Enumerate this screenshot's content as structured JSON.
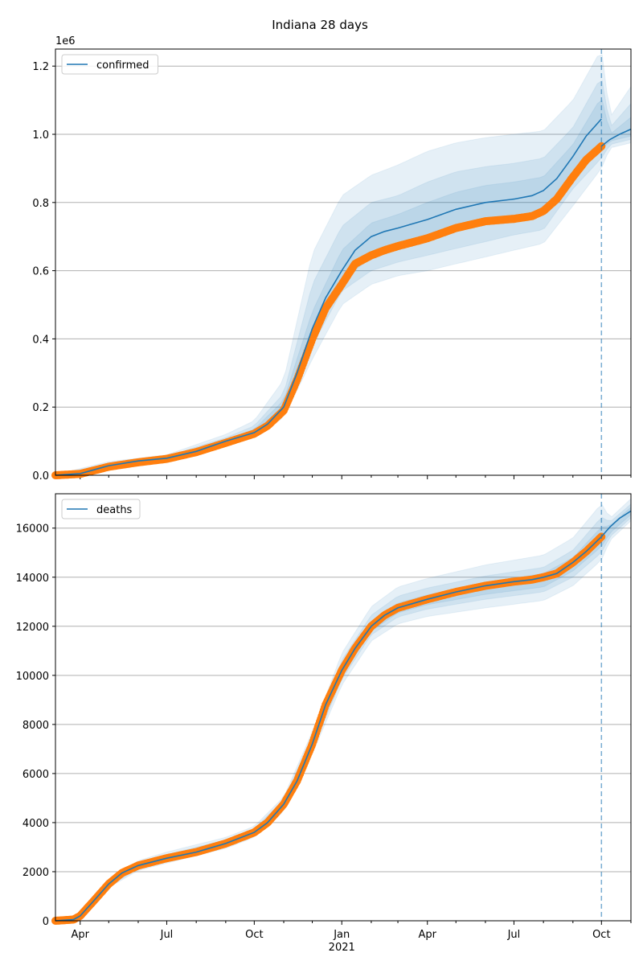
{
  "figure_title": "Indiana 28 days",
  "colors": {
    "model": "#1f77b4",
    "observed": "#ff7f0e",
    "band": "#1f77b4",
    "grid": "#b0b0b0",
    "vline": "#1f77b4"
  },
  "chart_data": [
    {
      "type": "line",
      "title": "",
      "legend": {
        "label": "confirmed",
        "placement": "top-left"
      },
      "offset_label": "1e6",
      "ylim": [
        0,
        1.25
      ],
      "yticks": [
        0.0,
        0.2,
        0.4,
        0.6,
        0.8,
        1.0,
        1.2
      ],
      "ytick_labels": [
        "0.0",
        "0.2",
        "0.4",
        "0.6",
        "0.8",
        "1.0",
        "1.2"
      ],
      "grid": true,
      "forecast_start": "2021-10-01",
      "model": {
        "x": [
          "2020-03-06",
          "2020-04-01",
          "2020-05-01",
          "2020-06-01",
          "2020-07-01",
          "2020-08-01",
          "2020-09-01",
          "2020-10-01",
          "2020-10-15",
          "2020-11-01",
          "2020-11-15",
          "2020-12-01",
          "2020-12-15",
          "2021-01-01",
          "2021-01-15",
          "2021-02-01",
          "2021-02-15",
          "2021-03-01",
          "2021-04-01",
          "2021-05-01",
          "2021-06-01",
          "2021-07-01",
          "2021-07-20",
          "2021-08-01",
          "2021-08-15",
          "2021-09-01",
          "2021-09-15",
          "2021-10-01"
        ],
        "y": [
          0.0,
          0.005,
          0.028,
          0.042,
          0.05,
          0.07,
          0.1,
          0.125,
          0.15,
          0.2,
          0.3,
          0.43,
          0.52,
          0.6,
          0.66,
          0.7,
          0.715,
          0.725,
          0.75,
          0.78,
          0.8,
          0.81,
          0.82,
          0.835,
          0.87,
          0.935,
          0.995,
          1.045
        ]
      },
      "forecast": {
        "x": [
          "2021-10-01",
          "2021-10-10",
          "2021-10-20",
          "2021-11-01"
        ],
        "y": [
          0.965,
          0.985,
          1.0,
          1.015
        ]
      },
      "observed": {
        "x": [
          "2020-03-06",
          "2020-04-01",
          "2020-05-01",
          "2020-06-01",
          "2020-07-01",
          "2020-08-01",
          "2020-09-01",
          "2020-10-01",
          "2020-10-15",
          "2020-11-01",
          "2020-11-15",
          "2020-12-01",
          "2020-12-15",
          "2021-01-01",
          "2021-01-15",
          "2021-02-01",
          "2021-02-15",
          "2021-03-01",
          "2021-04-01",
          "2021-05-01",
          "2021-06-01",
          "2021-07-01",
          "2021-07-20",
          "2021-08-01",
          "2021-08-15",
          "2021-09-01",
          "2021-09-15",
          "2021-10-01"
        ],
        "y": [
          0.0,
          0.004,
          0.025,
          0.038,
          0.048,
          0.068,
          0.095,
          0.122,
          0.145,
          0.19,
          0.28,
          0.4,
          0.49,
          0.56,
          0.62,
          0.645,
          0.66,
          0.672,
          0.695,
          0.725,
          0.745,
          0.752,
          0.76,
          0.775,
          0.81,
          0.875,
          0.925,
          0.965
        ]
      },
      "bands": [
        {
          "x": [
            "2020-03-06",
            "2020-05-01",
            "2020-07-01",
            "2020-09-01",
            "2020-10-01",
            "2020-11-01",
            "2020-12-01",
            "2021-01-01",
            "2021-02-01",
            "2021-03-01",
            "2021-04-01",
            "2021-05-01",
            "2021-06-01",
            "2021-07-01",
            "2021-08-01",
            "2021-09-01",
            "2021-10-01",
            "2021-10-10",
            "2021-11-01"
          ],
          "lo": [
            0.0,
            0.02,
            0.042,
            0.085,
            0.11,
            0.17,
            0.34,
            0.5,
            0.56,
            0.585,
            0.6,
            0.62,
            0.64,
            0.66,
            0.68,
            0.79,
            0.9,
            0.96,
            0.975
          ],
          "hi": [
            0.002,
            0.04,
            0.06,
            0.12,
            0.16,
            0.28,
            0.65,
            0.82,
            0.88,
            0.91,
            0.95,
            0.975,
            0.99,
            1.0,
            1.01,
            1.1,
            1.25,
            1.05,
            1.14
          ]
        },
        {
          "x": [
            "2020-03-06",
            "2020-05-01",
            "2020-07-01",
            "2020-09-01",
            "2020-10-01",
            "2020-11-01",
            "2020-12-01",
            "2021-01-01",
            "2021-02-01",
            "2021-03-01",
            "2021-04-01",
            "2021-05-01",
            "2021-06-01",
            "2021-07-01",
            "2021-08-01",
            "2021-09-01",
            "2021-10-01",
            "2021-10-10",
            "2021-11-01"
          ],
          "lo": [
            0.0,
            0.022,
            0.045,
            0.09,
            0.115,
            0.18,
            0.38,
            0.54,
            0.6,
            0.625,
            0.645,
            0.665,
            0.685,
            0.705,
            0.72,
            0.84,
            0.93,
            0.97,
            0.985
          ],
          "hi": [
            0.001,
            0.035,
            0.056,
            0.11,
            0.145,
            0.24,
            0.56,
            0.73,
            0.8,
            0.82,
            0.86,
            0.89,
            0.905,
            0.915,
            0.93,
            1.02,
            1.17,
            1.02,
            1.09
          ]
        },
        {
          "x": [
            "2020-03-06",
            "2020-05-01",
            "2020-07-01",
            "2020-09-01",
            "2020-10-01",
            "2020-11-01",
            "2020-12-01",
            "2021-01-01",
            "2021-02-01",
            "2021-03-01",
            "2021-04-01",
            "2021-05-01",
            "2021-06-01",
            "2021-07-01",
            "2021-08-01",
            "2021-09-01",
            "2021-10-01",
            "2021-10-10",
            "2021-11-01"
          ],
          "lo": [
            0.0,
            0.025,
            0.048,
            0.095,
            0.12,
            0.19,
            0.41,
            0.57,
            0.64,
            0.67,
            0.69,
            0.715,
            0.735,
            0.75,
            0.765,
            0.88,
            0.955,
            0.98,
            0.995
          ],
          "hi": [
            0.001,
            0.031,
            0.052,
            0.104,
            0.135,
            0.22,
            0.48,
            0.66,
            0.74,
            0.765,
            0.8,
            0.83,
            0.85,
            0.86,
            0.875,
            0.97,
            1.11,
            1.0,
            1.05
          ]
        }
      ]
    },
    {
      "type": "line",
      "title": "",
      "legend": {
        "label": "deaths",
        "placement": "top-left"
      },
      "ylim": [
        0,
        17400
      ],
      "yticks": [
        0,
        2000,
        4000,
        6000,
        8000,
        10000,
        12000,
        14000,
        16000
      ],
      "ytick_labels": [
        "0",
        "2000",
        "4000",
        "6000",
        "8000",
        "10000",
        "12000",
        "14000",
        "16000"
      ],
      "xticks": [
        {
          "date": "2020-04-01",
          "label": "Apr",
          "major": true
        },
        {
          "date": "2020-07-01",
          "label": "Jul",
          "major": true
        },
        {
          "date": "2020-10-01",
          "label": "Oct",
          "major": true
        },
        {
          "date": "2021-01-01",
          "label": "Jan",
          "major": true
        },
        {
          "date": "2021-04-01",
          "label": "Apr",
          "major": true
        },
        {
          "date": "2021-07-01",
          "label": "Jul",
          "major": true
        },
        {
          "date": "2021-10-01",
          "label": "Oct",
          "major": true
        }
      ],
      "year_label": {
        "date": "2021-01-01",
        "label": "2021"
      },
      "xlim": [
        "2020-03-06",
        "2021-11-01"
      ],
      "grid": true,
      "forecast_start": "2021-10-01",
      "model": {
        "x": [
          "2020-03-06",
          "2020-03-25",
          "2020-04-01",
          "2020-04-15",
          "2020-05-01",
          "2020-05-15",
          "2020-06-01",
          "2020-07-01",
          "2020-08-01",
          "2020-09-01",
          "2020-10-01",
          "2020-10-15",
          "2020-11-01",
          "2020-11-15",
          "2020-12-01",
          "2020-12-15",
          "2021-01-01",
          "2021-01-15",
          "2021-02-01",
          "2021-02-15",
          "2021-03-01",
          "2021-04-01",
          "2021-05-01",
          "2021-06-01",
          "2021-07-01",
          "2021-07-20",
          "2021-08-01",
          "2021-08-15",
          "2021-09-01",
          "2021-09-15",
          "2021-10-01"
        ],
        "y": [
          0,
          50,
          200,
          800,
          1500,
          1950,
          2250,
          2550,
          2800,
          3150,
          3600,
          4000,
          4750,
          5700,
          7200,
          8800,
          10200,
          11100,
          12000,
          12450,
          12750,
          13100,
          13400,
          13650,
          13820,
          13900,
          14000,
          14150,
          14600,
          15050,
          15650
        ]
      },
      "forecast": {
        "x": [
          "2021-10-01",
          "2021-10-10",
          "2021-10-20",
          "2021-11-01"
        ],
        "y": [
          15650,
          16050,
          16400,
          16700
        ]
      },
      "observed": {
        "x": [
          "2020-03-06",
          "2020-03-25",
          "2020-04-01",
          "2020-04-15",
          "2020-05-01",
          "2020-05-15",
          "2020-06-01",
          "2020-07-01",
          "2020-08-01",
          "2020-09-01",
          "2020-10-01",
          "2020-10-15",
          "2020-11-01",
          "2020-11-15",
          "2020-12-01",
          "2020-12-15",
          "2021-01-01",
          "2021-01-15",
          "2021-02-01",
          "2021-02-15",
          "2021-03-01",
          "2021-04-01",
          "2021-05-01",
          "2021-06-01",
          "2021-07-01",
          "2021-07-20",
          "2021-08-01",
          "2021-08-15",
          "2021-09-01",
          "2021-09-15",
          "2021-10-01"
        ],
        "y": [
          0,
          50,
          200,
          800,
          1500,
          1950,
          2250,
          2550,
          2800,
          3150,
          3600,
          4000,
          4750,
          5700,
          7200,
          8800,
          10200,
          11100,
          12000,
          12450,
          12750,
          13100,
          13400,
          13650,
          13820,
          13900,
          14000,
          14150,
          14600,
          15050,
          15650
        ]
      },
      "bands": [
        {
          "x": [
            "2020-03-06",
            "2020-04-01",
            "2020-05-01",
            "2020-06-01",
            "2020-07-01",
            "2020-09-01",
            "2020-10-01",
            "2020-11-01",
            "2020-12-01",
            "2021-01-01",
            "2021-02-01",
            "2021-03-01",
            "2021-04-01",
            "2021-06-01",
            "2021-08-01",
            "2021-09-01",
            "2021-10-01",
            "2021-10-10",
            "2021-11-01"
          ],
          "lo": [
            0,
            150,
            1350,
            2050,
            2350,
            2950,
            3400,
            4450,
            6800,
            9600,
            11400,
            12100,
            12400,
            12750,
            13050,
            13650,
            14700,
            15500,
            16300
          ],
          "hi": [
            60,
            260,
            1700,
            2450,
            2800,
            3400,
            3850,
            5050,
            7700,
            10900,
            12800,
            13600,
            13950,
            14500,
            14900,
            15600,
            17000,
            16400,
            17200
          ]
        },
        {
          "x": [
            "2020-03-06",
            "2020-04-01",
            "2020-05-01",
            "2020-06-01",
            "2020-07-01",
            "2020-09-01",
            "2020-10-01",
            "2020-11-01",
            "2020-12-01",
            "2021-01-01",
            "2021-02-01",
            "2021-03-01",
            "2021-04-01",
            "2021-06-01",
            "2021-08-01",
            "2021-09-01",
            "2021-10-01",
            "2021-10-10",
            "2021-11-01"
          ],
          "lo": [
            0,
            170,
            1400,
            2120,
            2430,
            3030,
            3480,
            4560,
            6960,
            9840,
            11650,
            12380,
            12700,
            13100,
            13400,
            14000,
            15000,
            15650,
            16420
          ],
          "hi": [
            40,
            240,
            1620,
            2380,
            2700,
            3300,
            3750,
            4940,
            7520,
            10620,
            12450,
            13230,
            13560,
            14050,
            14400,
            15100,
            16450,
            16250,
            16980
          ]
        },
        {
          "x": [
            "2020-03-06",
            "2020-04-01",
            "2020-05-01",
            "2020-06-01",
            "2020-07-01",
            "2020-09-01",
            "2020-10-01",
            "2020-11-01",
            "2020-12-01",
            "2021-01-01",
            "2021-02-01",
            "2021-03-01",
            "2021-04-01",
            "2021-06-01",
            "2021-08-01",
            "2021-09-01",
            "2021-10-01",
            "2021-10-10",
            "2021-11-01"
          ],
          "lo": [
            0,
            185,
            1450,
            2180,
            2480,
            3080,
            3530,
            4630,
            7060,
            9990,
            11800,
            12550,
            12880,
            13300,
            13600,
            14250,
            15250,
            15800,
            16550
          ],
          "hi": [
            25,
            220,
            1560,
            2320,
            2620,
            3230,
            3680,
            4860,
            7340,
            10400,
            12220,
            12950,
            13280,
            13800,
            14150,
            14800,
            16050,
            16100,
            16850
          ]
        }
      ]
    }
  ]
}
